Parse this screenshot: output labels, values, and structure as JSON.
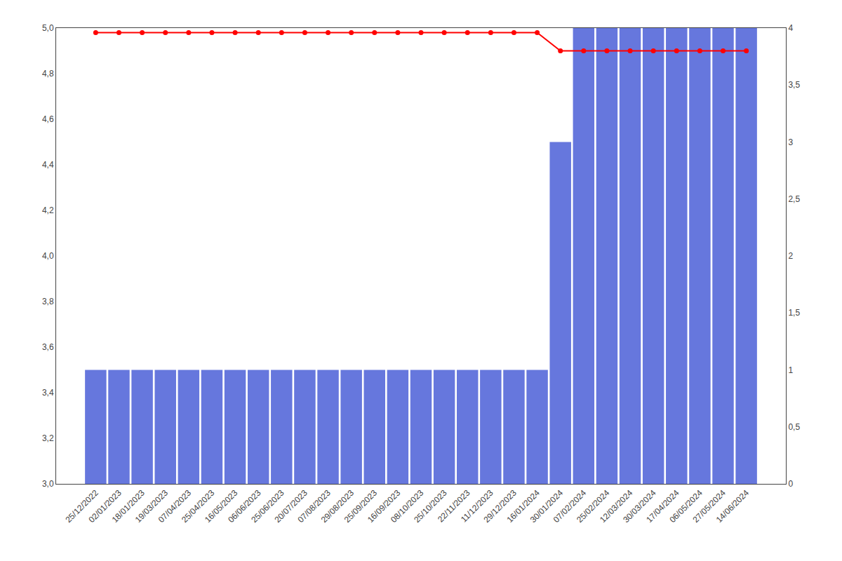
{
  "chart_data": {
    "type": "bar",
    "categories": [
      "25/12/2022",
      "02/01/2023",
      "18/01/2023",
      "19/03/2023",
      "07/04/2023",
      "25/04/2023",
      "16/05/2023",
      "06/06/2023",
      "25/06/2023",
      "20/07/2023",
      "07/08/2023",
      "29/08/2023",
      "25/09/2023",
      "16/09/2023",
      "08/10/2023",
      "25/10/2023",
      "22/11/2023",
      "11/12/2023",
      "29/12/2023",
      "16/01/2024",
      "30/01/2024",
      "07/02/2024",
      "25/02/2024",
      "12/03/2024",
      "30/03/2024",
      "17/04/2024",
      "06/05/2024",
      "27/05/2024",
      "14/06/2024"
    ],
    "series": [
      {
        "type": "bar",
        "axis": "y2",
        "color": "#6677DD",
        "values": [
          1,
          1,
          1,
          1,
          1,
          1,
          1,
          1,
          1,
          1,
          1,
          1,
          1,
          1,
          1,
          1,
          1,
          1,
          1,
          1,
          3,
          4,
          4,
          4,
          4,
          4,
          4,
          4,
          4
        ]
      },
      {
        "type": "line",
        "color": "#FF0000",
        "marker": "circle",
        "values": [
          4.98,
          4.98,
          4.98,
          4.98,
          4.98,
          4.98,
          4.98,
          4.98,
          4.98,
          4.98,
          4.98,
          4.98,
          4.98,
          4.98,
          4.98,
          4.98,
          4.98,
          4.98,
          4.98,
          4.98,
          4.9,
          4.9,
          4.9,
          4.9,
          4.9,
          4.9,
          4.9,
          4.9,
          4.9
        ]
      }
    ],
    "ylim": [
      3.0,
      5.0
    ],
    "yticks": [
      {
        "value": 3.0,
        "label": "3,0"
      },
      {
        "value": 3.2,
        "label": "3,2"
      },
      {
        "value": 3.4,
        "label": "3,4"
      },
      {
        "value": 3.6,
        "label": "3,6"
      },
      {
        "value": 3.8,
        "label": "3,8"
      },
      {
        "value": 4.0,
        "label": "4,0"
      },
      {
        "value": 4.2,
        "label": "4,2"
      },
      {
        "value": 4.4,
        "label": "4,4"
      },
      {
        "value": 4.6,
        "label": "4,6"
      },
      {
        "value": 4.8,
        "label": "4,8"
      },
      {
        "value": 5.0,
        "label": "5,0"
      }
    ],
    "y2lim": [
      0,
      4.0
    ],
    "y2ticks": [
      0,
      {
        "value": 0.5,
        "label": "0,5"
      },
      1,
      {
        "value": 1.5,
        "label": "1,5"
      },
      2,
      {
        "value": 2.5,
        "label": "2,5"
      },
      3,
      {
        "value": 3.5,
        "label": "3,5"
      },
      4
    ],
    "grid": false
  }
}
